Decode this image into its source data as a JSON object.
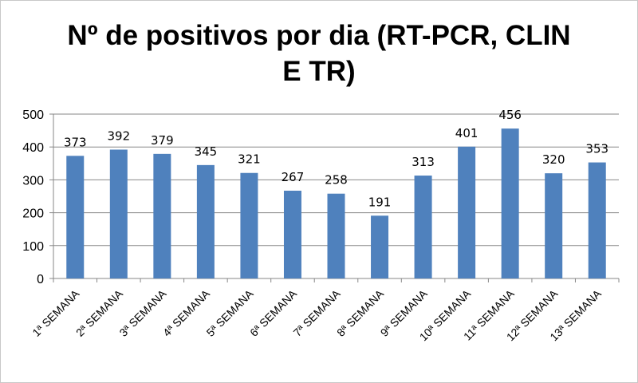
{
  "chart_data": {
    "type": "bar",
    "title_lines": [
      "Nº de positivos por dia (RT-PCR, CLIN",
      "E TR)"
    ],
    "categories": [
      "1ª SEMANA",
      "2ª SEMANA",
      "3ª SEMANA",
      "4ª SEMANA",
      "5ª SEMANA",
      "6ª SEMANA",
      "7ª SEMANA",
      "8ª SEMANA",
      "9ª SEMANA",
      "10ª SEMANA",
      "11ª SEMANA",
      "12ª SEMANA",
      "13ª SEMANA"
    ],
    "values": [
      373,
      392,
      379,
      345,
      321,
      267,
      258,
      191,
      313,
      401,
      456,
      320,
      353
    ],
    "yticks": [
      0,
      100,
      200,
      300,
      400,
      500
    ],
    "ylim": [
      0,
      500
    ],
    "grid": true,
    "legend": "none",
    "bar_color": "#4f81bd"
  }
}
